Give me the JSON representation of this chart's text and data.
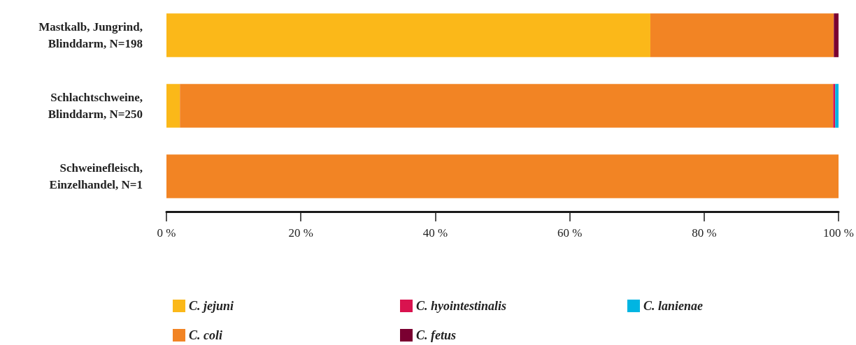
{
  "chart_data": {
    "type": "bar",
    "orientation": "horizontal",
    "stacked": true,
    "categories": [
      "Mastkalb, Jungrind,\nBlinddarm, N=198",
      "Schlachtschweine,\nBlinddarm, N=250",
      "Schweinefleisch,\nEinzelhandel, N=1"
    ],
    "series": [
      {
        "name": "C. jejuni",
        "color": "#fbb819",
        "values": [
          72.0,
          2.0,
          0
        ]
      },
      {
        "name": "C. coli",
        "color": "#f28424",
        "values": [
          27.3,
          97.2,
          100
        ]
      },
      {
        "name": "C. hyointestinalis",
        "color": "#d9134f",
        "values": [
          0,
          0.3,
          0
        ]
      },
      {
        "name": "C. fetus",
        "color": "#7a0031",
        "values": [
          0.7,
          0,
          0
        ]
      },
      {
        "name": "C. lanienae",
        "color": "#00b5e2",
        "values": [
          0,
          0.5,
          0
        ]
      }
    ],
    "xlim": [
      0,
      100
    ],
    "xticks": [
      {
        "value": 0,
        "label": "0 %"
      },
      {
        "value": 20,
        "label": "20 %"
      },
      {
        "value": 40,
        "label": "40 %"
      },
      {
        "value": 60,
        "label": "60 %"
      },
      {
        "value": 80,
        "label": "80 %"
      },
      {
        "value": 100,
        "label": "100 %"
      }
    ],
    "grid": false,
    "legend": "bottom"
  }
}
